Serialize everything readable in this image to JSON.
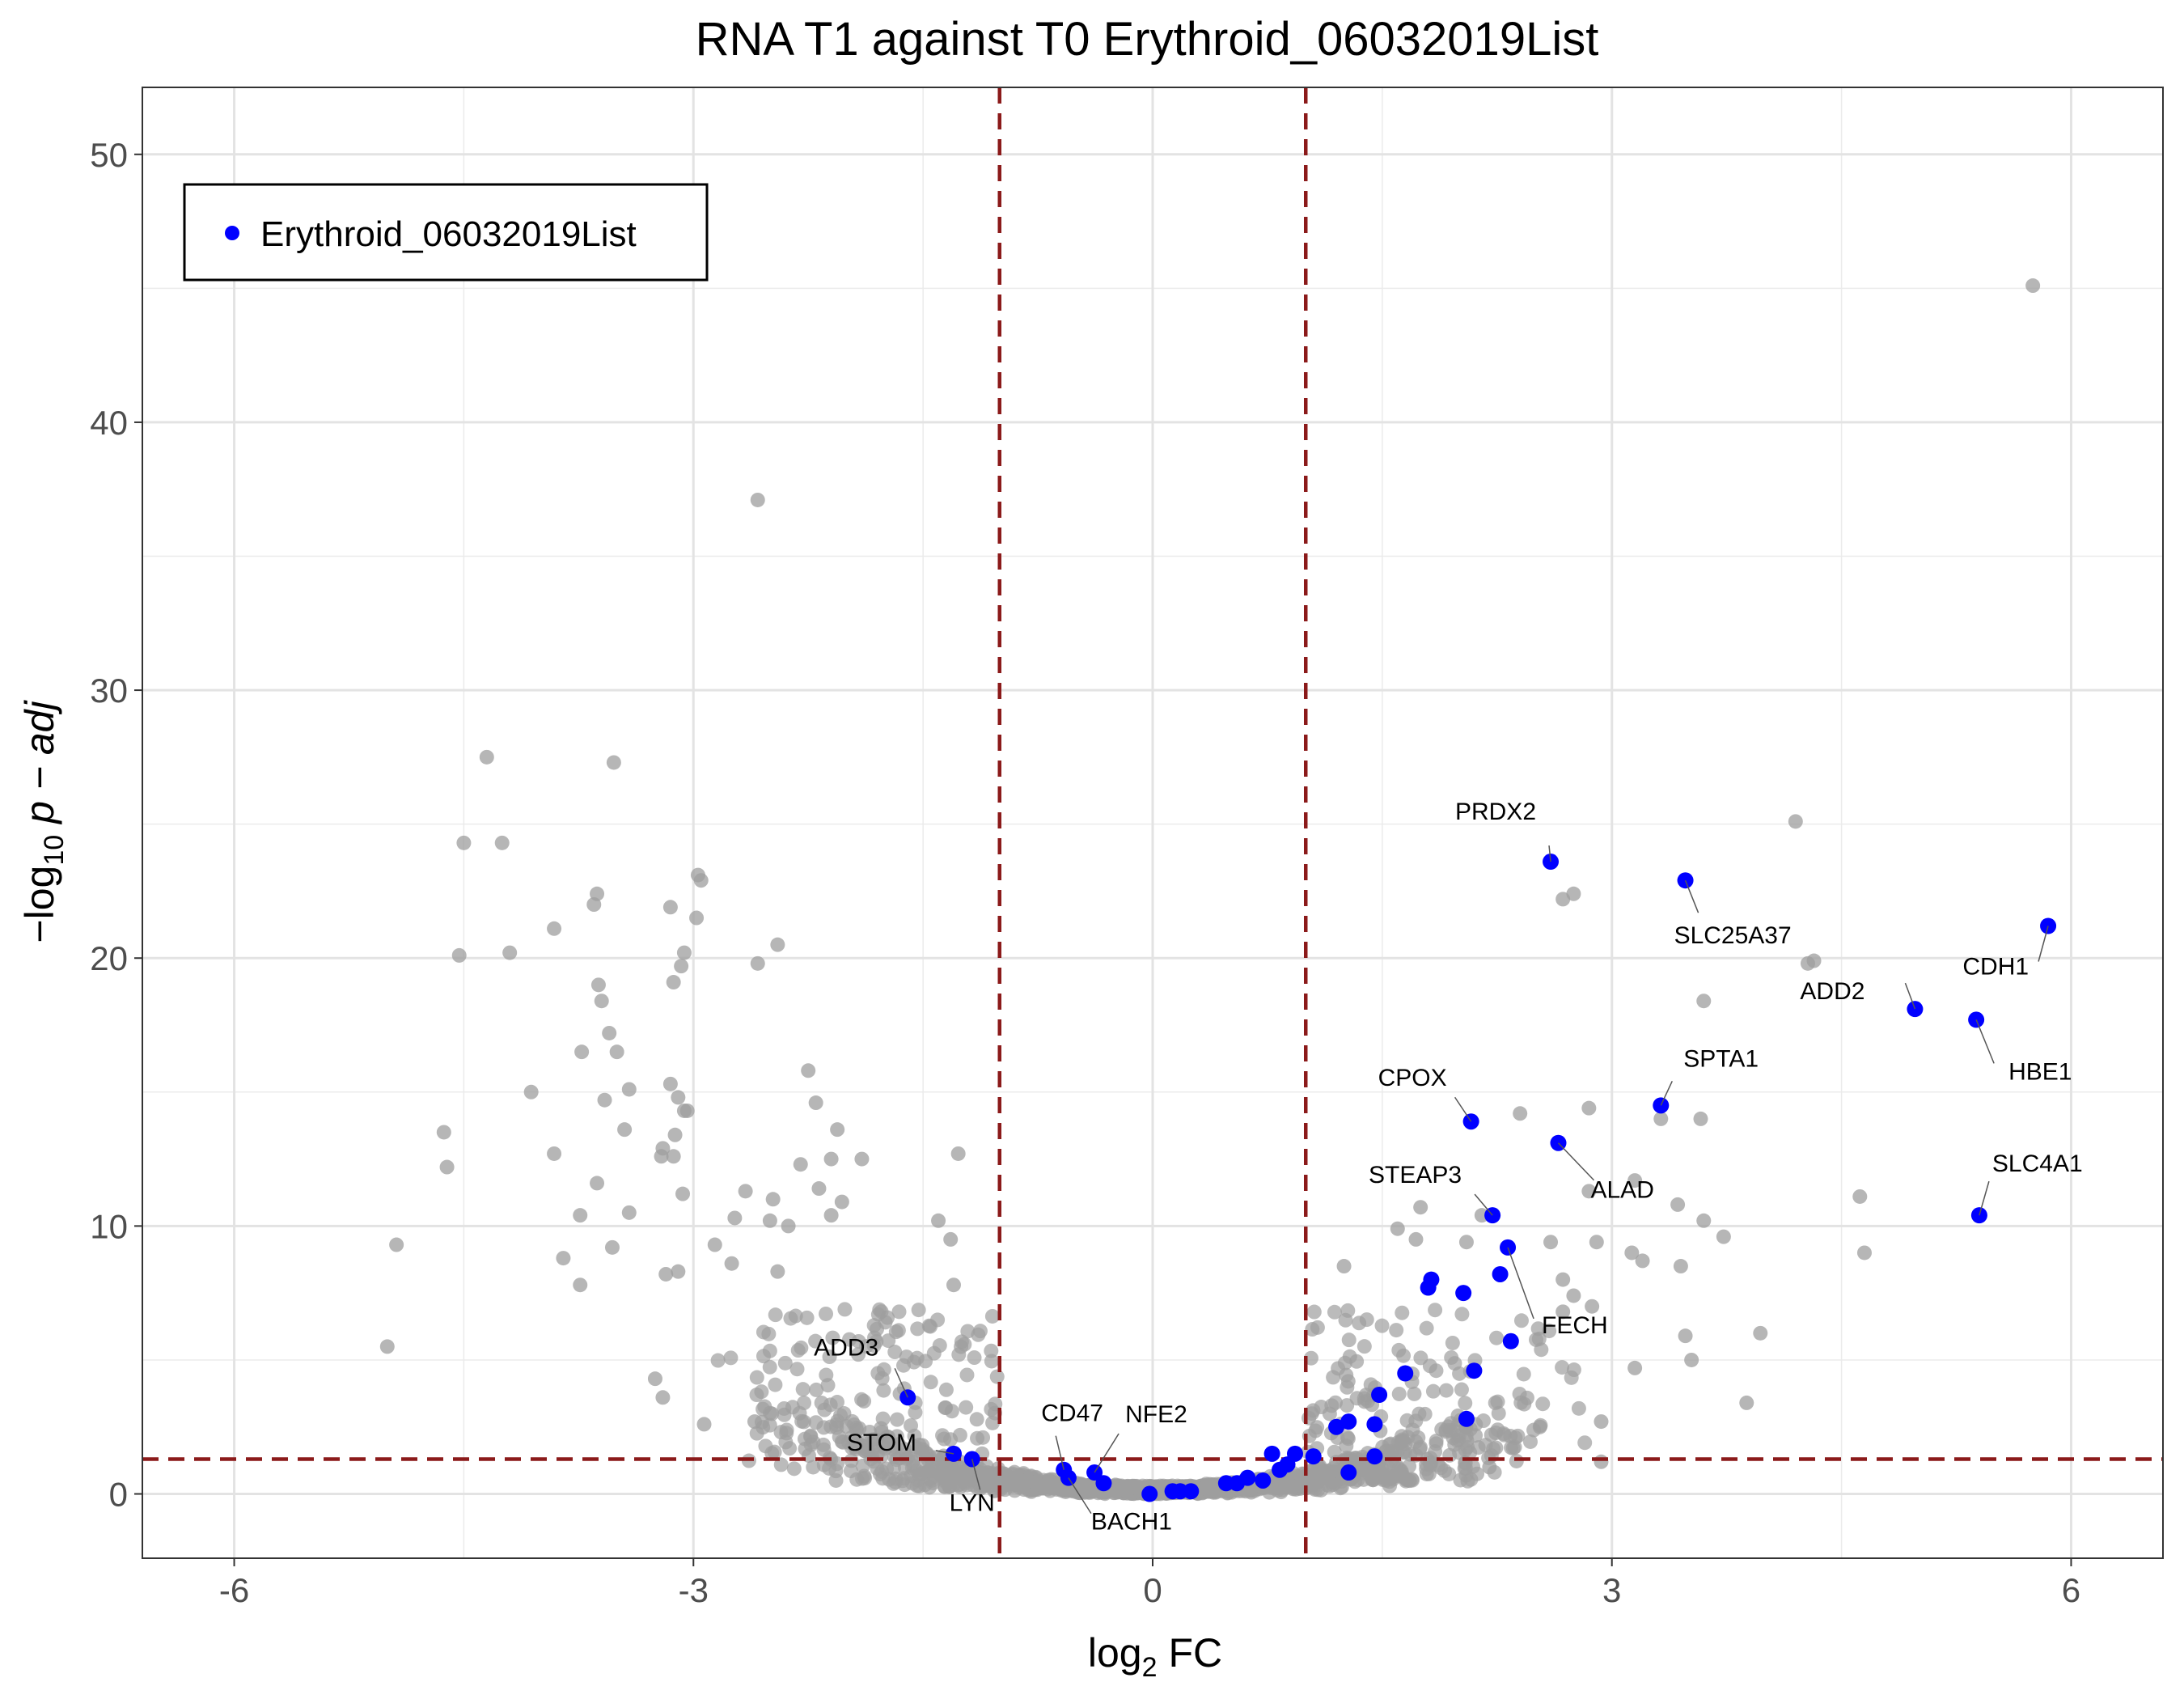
{
  "chart_data": {
    "type": "scatter",
    "title": "RNA T1 against T0 Erythroid_06032019List",
    "xlabel": {
      "prefix": "log",
      "sub": "2",
      "suffix": " FC"
    },
    "ylabel": {
      "prefix": "−log",
      "sub": "10",
      "suffix": " p − adj"
    },
    "xlim": [
      -6.6,
      6.6
    ],
    "ylim": [
      -2.4,
      52.5
    ],
    "x_ticks": [
      -6,
      -3,
      0,
      3,
      6
    ],
    "x_tick_labels": [
      "-6",
      "-3",
      "0",
      "3",
      "6"
    ],
    "y_ticks": [
      0,
      10,
      20,
      30,
      40,
      50
    ],
    "y_tick_labels": [
      "0",
      "10",
      "20",
      "30",
      "40",
      "50"
    ],
    "grid": true,
    "fc_cutoff": 1,
    "p_cutoff": 1.3,
    "cutoff_color": "#8b1a1a",
    "legend": {
      "position": "top-left",
      "label": "Erythroid_06032019List",
      "color": "#0000ff"
    },
    "series": [
      {
        "name": "Erythroid_06032019List",
        "color": "#0000ff",
        "points": [
          {
            "x": 2.6,
            "y": 23.6,
            "label": "PRDX2"
          },
          {
            "x": 3.48,
            "y": 22.9,
            "label": "SLC25A37"
          },
          {
            "x": 5.85,
            "y": 21.2,
            "label": "CDH1"
          },
          {
            "x": 4.98,
            "y": 18.1,
            "label": "ADD2"
          },
          {
            "x": 5.38,
            "y": 17.7,
            "label": "HBE1"
          },
          {
            "x": 3.32,
            "y": 14.5,
            "label": "SPTA1"
          },
          {
            "x": 2.08,
            "y": 13.9,
            "label": "CPOX"
          },
          {
            "x": 2.65,
            "y": 13.1,
            "label": "ALAD"
          },
          {
            "x": 2.22,
            "y": 10.4,
            "label": "STEAP3"
          },
          {
            "x": 5.4,
            "y": 10.4,
            "label": "SLC4A1"
          },
          {
            "x": 2.32,
            "y": 9.2,
            "label": "FECH"
          },
          {
            "x": -1.6,
            "y": 3.6,
            "label": "ADD3"
          },
          {
            "x": -0.58,
            "y": 0.9,
            "label": "CD47"
          },
          {
            "x": -0.38,
            "y": 0.8,
            "label": "NFE2"
          },
          {
            "x": -1.3,
            "y": 1.5,
            "label": "STOM"
          },
          {
            "x": -1.18,
            "y": 1.3,
            "label": "LYN"
          },
          {
            "x": -0.55,
            "y": 0.6,
            "label": "BACH1"
          },
          {
            "x": 2.27,
            "y": 8.2
          },
          {
            "x": 1.82,
            "y": 8.0
          },
          {
            "x": 1.8,
            "y": 7.7
          },
          {
            "x": 2.03,
            "y": 7.5
          },
          {
            "x": 2.34,
            "y": 5.7
          },
          {
            "x": 2.1,
            "y": 4.6
          },
          {
            "x": 1.65,
            "y": 4.5
          },
          {
            "x": 1.48,
            "y": 3.7
          },
          {
            "x": 2.05,
            "y": 2.8
          },
          {
            "x": 1.45,
            "y": 2.6
          },
          {
            "x": 1.28,
            "y": 2.7
          },
          {
            "x": 1.2,
            "y": 2.5
          },
          {
            "x": 1.45,
            "y": 1.4
          },
          {
            "x": 1.05,
            "y": 1.4
          },
          {
            "x": 0.78,
            "y": 1.5
          },
          {
            "x": 0.93,
            "y": 1.5
          },
          {
            "x": 0.88,
            "y": 1.1
          },
          {
            "x": 0.83,
            "y": 0.9
          },
          {
            "x": 1.28,
            "y": 0.8
          },
          {
            "x": 0.72,
            "y": 0.5
          },
          {
            "x": 0.62,
            "y": 0.6
          },
          {
            "x": 0.55,
            "y": 0.4
          },
          {
            "x": 0.48,
            "y": 0.4
          },
          {
            "x": 0.25,
            "y": 0.1
          },
          {
            "x": 0.18,
            "y": 0.1
          },
          {
            "x": 0.13,
            "y": 0.1
          },
          {
            "x": -0.02,
            "y": 0.0
          },
          {
            "x": -0.32,
            "y": 0.4
          }
        ]
      },
      {
        "name": "",
        "color": "#9e9e9e",
        "outliers": [
          {
            "x": 5.75,
            "y": 45.1
          },
          {
            "x": -2.58,
            "y": 37.1
          },
          {
            "x": -4.35,
            "y": 27.5
          },
          {
            "x": -3.52,
            "y": 27.3
          },
          {
            "x": 4.2,
            "y": 25.1
          },
          {
            "x": -4.5,
            "y": 24.3
          },
          {
            "x": -4.25,
            "y": 24.3
          },
          {
            "x": -2.97,
            "y": 23.1
          },
          {
            "x": -2.95,
            "y": 22.9
          },
          {
            "x": -3.63,
            "y": 22.4
          },
          {
            "x": 2.75,
            "y": 22.4
          },
          {
            "x": 2.68,
            "y": 22.2
          },
          {
            "x": -3.65,
            "y": 22.0
          },
          {
            "x": -3.15,
            "y": 21.9
          },
          {
            "x": -2.98,
            "y": 21.5
          },
          {
            "x": -3.91,
            "y": 21.1
          },
          {
            "x": -2.45,
            "y": 20.5
          },
          {
            "x": -4.2,
            "y": 20.2
          },
          {
            "x": -3.06,
            "y": 20.2
          },
          {
            "x": -4.53,
            "y": 20.1
          },
          {
            "x": 4.32,
            "y": 19.9
          },
          {
            "x": 4.28,
            "y": 19.8
          },
          {
            "x": -2.58,
            "y": 19.8
          },
          {
            "x": -3.08,
            "y": 19.7
          },
          {
            "x": -3.13,
            "y": 19.1
          },
          {
            "x": -3.62,
            "y": 19.0
          },
          {
            "x": -3.6,
            "y": 18.4
          },
          {
            "x": 3.6,
            "y": 18.4
          },
          {
            "x": -3.55,
            "y": 17.2
          },
          {
            "x": -3.73,
            "y": 16.5
          },
          {
            "x": -3.5,
            "y": 16.5
          },
          {
            "x": -2.25,
            "y": 15.8
          },
          {
            "x": -3.15,
            "y": 15.3
          },
          {
            "x": -3.42,
            "y": 15.1
          },
          {
            "x": -4.06,
            "y": 15.0
          },
          {
            "x": -3.1,
            "y": 14.8
          },
          {
            "x": -3.58,
            "y": 14.7
          },
          {
            "x": -2.2,
            "y": 14.6
          },
          {
            "x": 2.85,
            "y": 14.4
          },
          {
            "x": -3.04,
            "y": 14.3
          },
          {
            "x": -3.06,
            "y": 14.3
          },
          {
            "x": 2.4,
            "y": 14.2
          },
          {
            "x": 3.32,
            "y": 14.0
          },
          {
            "x": 3.58,
            "y": 14.0
          },
          {
            "x": -3.45,
            "y": 13.6
          },
          {
            "x": -2.06,
            "y": 13.6
          },
          {
            "x": -3.12,
            "y": 13.4
          },
          {
            "x": -4.63,
            "y": 13.5
          },
          {
            "x": -3.2,
            "y": 12.9
          },
          {
            "x": -3.21,
            "y": 12.6
          },
          {
            "x": -3.13,
            "y": 12.6
          },
          {
            "x": -3.91,
            "y": 12.7
          },
          {
            "x": -1.27,
            "y": 12.7
          },
          {
            "x": -1.9,
            "y": 12.5
          },
          {
            "x": -2.3,
            "y": 12.3
          },
          {
            "x": -2.1,
            "y": 12.5
          },
          {
            "x": -4.61,
            "y": 12.2
          },
          {
            "x": -3.63,
            "y": 11.6
          },
          {
            "x": 3.15,
            "y": 11.7
          },
          {
            "x": 2.85,
            "y": 11.3
          },
          {
            "x": -2.66,
            "y": 11.3
          },
          {
            "x": -2.18,
            "y": 11.4
          },
          {
            "x": -3.07,
            "y": 11.2
          },
          {
            "x": 4.62,
            "y": 11.1
          },
          {
            "x": -2.48,
            "y": 11.0
          },
          {
            "x": 1.75,
            "y": 10.7
          },
          {
            "x": 3.43,
            "y": 10.8
          },
          {
            "x": -2.03,
            "y": 10.9
          },
          {
            "x": -3.74,
            "y": 10.4
          },
          {
            "x": -3.42,
            "y": 10.5
          },
          {
            "x": 2.15,
            "y": 10.4
          },
          {
            "x": -2.73,
            "y": 10.3
          },
          {
            "x": -2.1,
            "y": 10.4
          },
          {
            "x": 3.6,
            "y": 10.2
          },
          {
            "x": 1.6,
            "y": 9.9
          },
          {
            "x": 3.73,
            "y": 9.6
          },
          {
            "x": -2.5,
            "y": 10.2
          },
          {
            "x": -2.38,
            "y": 10.0
          },
          {
            "x": -1.4,
            "y": 10.2
          },
          {
            "x": 1.72,
            "y": 9.5
          },
          {
            "x": 2.6,
            "y": 9.4
          },
          {
            "x": 2.9,
            "y": 9.4
          },
          {
            "x": 2.05,
            "y": 9.4
          },
          {
            "x": -4.94,
            "y": 9.3
          },
          {
            "x": -3.53,
            "y": 9.2
          },
          {
            "x": -2.86,
            "y": 9.3
          },
          {
            "x": -1.32,
            "y": 9.5
          },
          {
            "x": 4.65,
            "y": 9.0
          },
          {
            "x": 3.13,
            "y": 9.0
          },
          {
            "x": 3.2,
            "y": 8.7
          },
          {
            "x": 3.45,
            "y": 8.5
          },
          {
            "x": -3.85,
            "y": 8.8
          },
          {
            "x": -3.18,
            "y": 8.2
          },
          {
            "x": -3.1,
            "y": 8.3
          },
          {
            "x": -2.75,
            "y": 8.6
          },
          {
            "x": -2.45,
            "y": 8.3
          },
          {
            "x": 1.25,
            "y": 8.5
          },
          {
            "x": -3.74,
            "y": 7.8
          },
          {
            "x": 2.68,
            "y": 8.0
          },
          {
            "x": -1.3,
            "y": 7.8
          },
          {
            "x": 2.75,
            "y": 7.4
          },
          {
            "x": 2.87,
            "y": 7.0
          },
          {
            "x": 2.68,
            "y": 6.8
          },
          {
            "x": 3.97,
            "y": 6.0
          },
          {
            "x": 3.48,
            "y": 5.9
          },
          {
            "x": -5.0,
            "y": 5.5
          },
          {
            "x": -3.25,
            "y": 4.3
          },
          {
            "x": -3.2,
            "y": 3.6
          },
          {
            "x": 3.52,
            "y": 5.0
          },
          {
            "x": 3.15,
            "y": 4.7
          },
          {
            "x": 3.88,
            "y": 3.4
          },
          {
            "x": 2.93,
            "y": 2.7
          },
          {
            "x": 2.53,
            "y": 2.5
          },
          {
            "x": 2.93,
            "y": 1.2
          },
          {
            "x": -2.93,
            "y": 2.6
          },
          {
            "x": -2.6,
            "y": 2.7
          },
          {
            "x": 2.2,
            "y": 1.0
          }
        ],
        "cloud": {
          "description": "dense cloud of non-list genes forming volcano shape",
          "points_per_bin": 30
        }
      }
    ]
  }
}
